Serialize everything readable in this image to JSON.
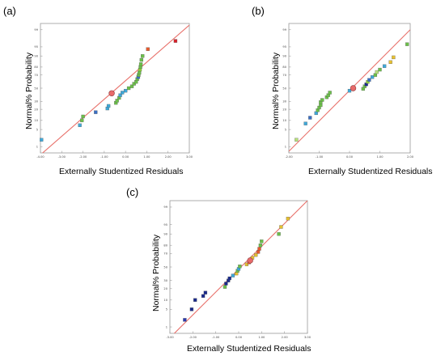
{
  "chart_data": [
    {
      "type": "scatter",
      "panel_label": "(a)",
      "xlabel": "Externally Studentized Residuals",
      "ylabel": "Normal% Probability",
      "xlim": [
        -4.0,
        3.0
      ],
      "x_ticks": [
        "-4.00",
        "-3.00",
        "-2.00",
        "-1.00",
        "0.00",
        "1.00",
        "2.00",
        "3.00"
      ],
      "x_tick_values": [
        -4,
        -3,
        -2,
        -1,
        0,
        1,
        2,
        3
      ],
      "y_ticks": [
        "1",
        "5",
        "10",
        "20",
        "30",
        "50",
        "70",
        "80",
        "90",
        "95",
        "99"
      ],
      "y_tick_values": [
        1,
        5,
        10,
        20,
        30,
        50,
        70,
        80,
        90,
        95,
        99
      ],
      "fit_line": {
        "x": [
          -4.0,
          3.0
        ],
        "y": [
          0.4,
          99.4
        ]
      },
      "points": [
        {
          "x": -3.95,
          "y": 2,
          "color": "#3fa8d8"
        },
        {
          "x": -2.15,
          "y": 7,
          "color": "#3fa8d8"
        },
        {
          "x": -2.05,
          "y": 10,
          "color": "#6cc04a"
        },
        {
          "x": -2.0,
          "y": 13,
          "color": "#6cc04a"
        },
        {
          "x": -1.4,
          "y": 17,
          "color": "#3a6fc4"
        },
        {
          "x": -0.85,
          "y": 21,
          "color": "#3fa8d8"
        },
        {
          "x": -0.8,
          "y": 24,
          "color": "#3fa8d8"
        },
        {
          "x": -0.45,
          "y": 28,
          "color": "#6cc04a"
        },
        {
          "x": -0.4,
          "y": 31,
          "color": "#6cc04a"
        },
        {
          "x": -0.3,
          "y": 35,
          "color": "#6cc04a"
        },
        {
          "x": -0.25,
          "y": 39,
          "color": "#3fa8d8"
        },
        {
          "x": -0.15,
          "y": 43,
          "color": "#3fa8d8"
        },
        {
          "x": 0.0,
          "y": 46,
          "color": "#3fa8d8"
        },
        {
          "x": 0.15,
          "y": 50,
          "color": "#6cc04a"
        },
        {
          "x": 0.3,
          "y": 53,
          "color": "#6cc04a"
        },
        {
          "x": 0.4,
          "y": 57,
          "color": "#6cc04a"
        },
        {
          "x": 0.5,
          "y": 60,
          "color": "#6cc04a"
        },
        {
          "x": 0.55,
          "y": 64,
          "color": "#6cc04a"
        },
        {
          "x": 0.6,
          "y": 67,
          "color": "#3a6fc4"
        },
        {
          "x": 0.62,
          "y": 70,
          "color": "#6cc04a"
        },
        {
          "x": 0.65,
          "y": 73,
          "color": "#6cc04a"
        },
        {
          "x": 0.68,
          "y": 77,
          "color": "#8fcf3c"
        },
        {
          "x": 0.7,
          "y": 80,
          "color": "#6cc04a"
        },
        {
          "x": 0.72,
          "y": 83,
          "color": "#6cc04a"
        },
        {
          "x": 0.75,
          "y": 87,
          "color": "#6cc04a"
        },
        {
          "x": 0.8,
          "y": 90,
          "color": "#6cc04a"
        },
        {
          "x": 1.05,
          "y": 94,
          "color": "#e65a2e"
        },
        {
          "x": 2.35,
          "y": 97,
          "color": "#d8202a"
        }
      ],
      "design_point": {
        "x": -0.65,
        "y": 42,
        "color": "#e86a6a"
      }
    },
    {
      "type": "scatter",
      "panel_label": "(b)",
      "xlabel": "Externally Studentized Residuals",
      "ylabel": "Normal% Probability",
      "xlim": [
        -2.0,
        2.0
      ],
      "x_ticks": [
        "-2.00",
        "-1.00",
        "0.00",
        "1.00",
        "2.00"
      ],
      "x_tick_values": [
        -2,
        -1,
        0,
        1,
        2
      ],
      "y_ticks": [
        "1",
        "5",
        "10",
        "20",
        "30",
        "50",
        "70",
        "80",
        "90",
        "95",
        "99"
      ],
      "y_tick_values": [
        1,
        5,
        10,
        20,
        30,
        50,
        70,
        80,
        90,
        95,
        99
      ],
      "fit_line": {
        "x": [
          -2.0,
          2.0
        ],
        "y": [
          0.6,
          99.0
        ]
      },
      "points": [
        {
          "x": -1.75,
          "y": 2,
          "color": "#b6e07a"
        },
        {
          "x": -1.45,
          "y": 8,
          "color": "#3fa8d8"
        },
        {
          "x": -1.3,
          "y": 12,
          "color": "#3a6fc4"
        },
        {
          "x": -1.1,
          "y": 16,
          "color": "#3fa8d8"
        },
        {
          "x": -1.05,
          "y": 19,
          "color": "#6cc04a"
        },
        {
          "x": -1.0,
          "y": 22,
          "color": "#6cc04a"
        },
        {
          "x": -0.95,
          "y": 25,
          "color": "#6cc04a"
        },
        {
          "x": -0.95,
          "y": 29,
          "color": "#6cc04a"
        },
        {
          "x": -0.9,
          "y": 32,
          "color": "#6cc04a"
        },
        {
          "x": -0.75,
          "y": 36,
          "color": "#6cc04a"
        },
        {
          "x": -0.7,
          "y": 39,
          "color": "#6cc04a"
        },
        {
          "x": -0.65,
          "y": 43,
          "color": "#6cc04a"
        },
        {
          "x": 0.0,
          "y": 46,
          "color": "#3fa8d8"
        },
        {
          "x": 0.45,
          "y": 49,
          "color": "#6cc04a"
        },
        {
          "x": 0.5,
          "y": 53,
          "color": "#6cc04a"
        },
        {
          "x": 0.55,
          "y": 56,
          "color": "#1a2a8c"
        },
        {
          "x": 0.6,
          "y": 60,
          "color": "#8fcf3c"
        },
        {
          "x": 0.65,
          "y": 63,
          "color": "#3a6fc4"
        },
        {
          "x": 0.75,
          "y": 67,
          "color": "#3fa8d8"
        },
        {
          "x": 0.85,
          "y": 70,
          "color": "#6cc04a"
        },
        {
          "x": 0.9,
          "y": 74,
          "color": "#b6e07a"
        },
        {
          "x": 1.0,
          "y": 77,
          "color": "#6cc04a"
        },
        {
          "x": 1.15,
          "y": 81,
          "color": "#3fa8d8"
        },
        {
          "x": 1.35,
          "y": 85,
          "color": "#e6c030"
        },
        {
          "x": 1.45,
          "y": 89,
          "color": "#e6c030"
        },
        {
          "x": 1.9,
          "y": 96,
          "color": "#6cc04a"
        }
      ],
      "design_point": {
        "x": 0.12,
        "y": 50,
        "color": "#e86a6a"
      }
    },
    {
      "type": "scatter",
      "panel_label": "(c)",
      "xlabel": "Externally Studentized Residuals",
      "ylabel": "Normal% Probability",
      "xlim": [
        -3.0,
        3.0
      ],
      "x_ticks": [
        "-3.00",
        "-2.00",
        "-1.00",
        "0.00",
        "1.00",
        "2.00",
        "3.00"
      ],
      "x_tick_values": [
        -3,
        -2,
        -1,
        0,
        1,
        2,
        3
      ],
      "y_ticks": [
        "1",
        "5",
        "10",
        "20",
        "30",
        "50",
        "70",
        "80",
        "90",
        "95",
        "99"
      ],
      "y_tick_values": [
        1,
        5,
        10,
        20,
        30,
        50,
        70,
        80,
        90,
        95,
        99
      ],
      "fit_line": {
        "x": [
          -3.0,
          3.0
        ],
        "y": [
          0.3,
          99.5
        ]
      },
      "points": [
        {
          "x": -2.35,
          "y": 2,
          "color": "#2a3ab0"
        },
        {
          "x": -2.05,
          "y": 5,
          "color": "#1a2a8c"
        },
        {
          "x": -1.9,
          "y": 10,
          "color": "#1a2a8c"
        },
        {
          "x": -1.55,
          "y": 13,
          "color": "#1a2a8c"
        },
        {
          "x": -1.45,
          "y": 16,
          "color": "#1a2a8c"
        },
        {
          "x": -0.6,
          "y": 22,
          "color": "#6cc04a"
        },
        {
          "x": -0.55,
          "y": 26,
          "color": "#1a2a8c"
        },
        {
          "x": -0.45,
          "y": 30,
          "color": "#1a2a8c"
        },
        {
          "x": -0.4,
          "y": 33,
          "color": "#1a2a8c"
        },
        {
          "x": -0.25,
          "y": 37,
          "color": "#3fa8d8"
        },
        {
          "x": -0.1,
          "y": 40,
          "color": "#e6c030"
        },
        {
          "x": -0.05,
          "y": 44,
          "color": "#6cc04a"
        },
        {
          "x": 0.0,
          "y": 47,
          "color": "#3fa8d8"
        },
        {
          "x": 0.05,
          "y": 51,
          "color": "#6cc04a"
        },
        {
          "x": 0.35,
          "y": 54,
          "color": "#e6c030"
        },
        {
          "x": 0.45,
          "y": 57,
          "color": "#e65a2e"
        },
        {
          "x": 0.5,
          "y": 61,
          "color": "#e65a2e"
        },
        {
          "x": 0.6,
          "y": 64,
          "color": "#e6c030"
        },
        {
          "x": 0.75,
          "y": 68,
          "color": "#e6c030"
        },
        {
          "x": 0.85,
          "y": 72,
          "color": "#e65a2e"
        },
        {
          "x": 0.9,
          "y": 76,
          "color": "#e65a2e"
        },
        {
          "x": 0.95,
          "y": 80,
          "color": "#6cc04a"
        },
        {
          "x": 1.0,
          "y": 84,
          "color": "#6cc04a"
        },
        {
          "x": 1.75,
          "y": 90,
          "color": "#6cc04a"
        },
        {
          "x": 1.85,
          "y": 94,
          "color": "#e6c030"
        },
        {
          "x": 2.15,
          "y": 97,
          "color": "#e6c030"
        }
      ],
      "design_point": {
        "x": 0.5,
        "y": 60,
        "color": "#e86a6a"
      }
    }
  ]
}
